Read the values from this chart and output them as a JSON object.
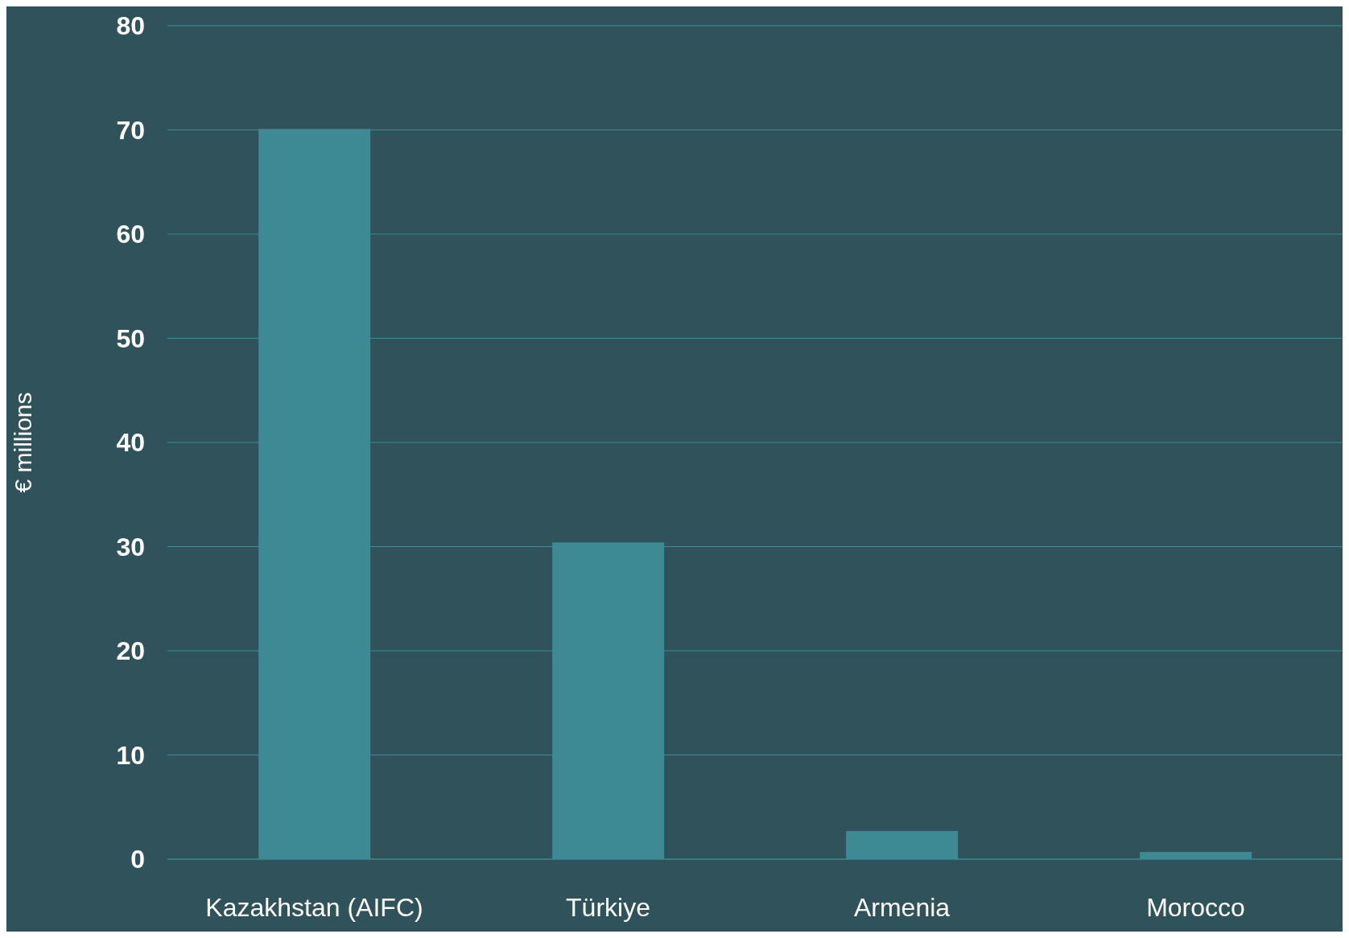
{
  "chart_data": {
    "type": "bar",
    "ylabel": "€ millions",
    "categories": [
      "Kazakhstan (AIFC)",
      "Türkiye",
      "Armenia",
      "Morocco"
    ],
    "values": [
      70.1,
      30.4,
      2.7,
      0.7
    ],
    "color": "#3d8a94",
    "ylim": [
      0,
      80
    ],
    "yticks": [
      0,
      10,
      20,
      30,
      40,
      50,
      60,
      70,
      80
    ],
    "grid": "y"
  }
}
